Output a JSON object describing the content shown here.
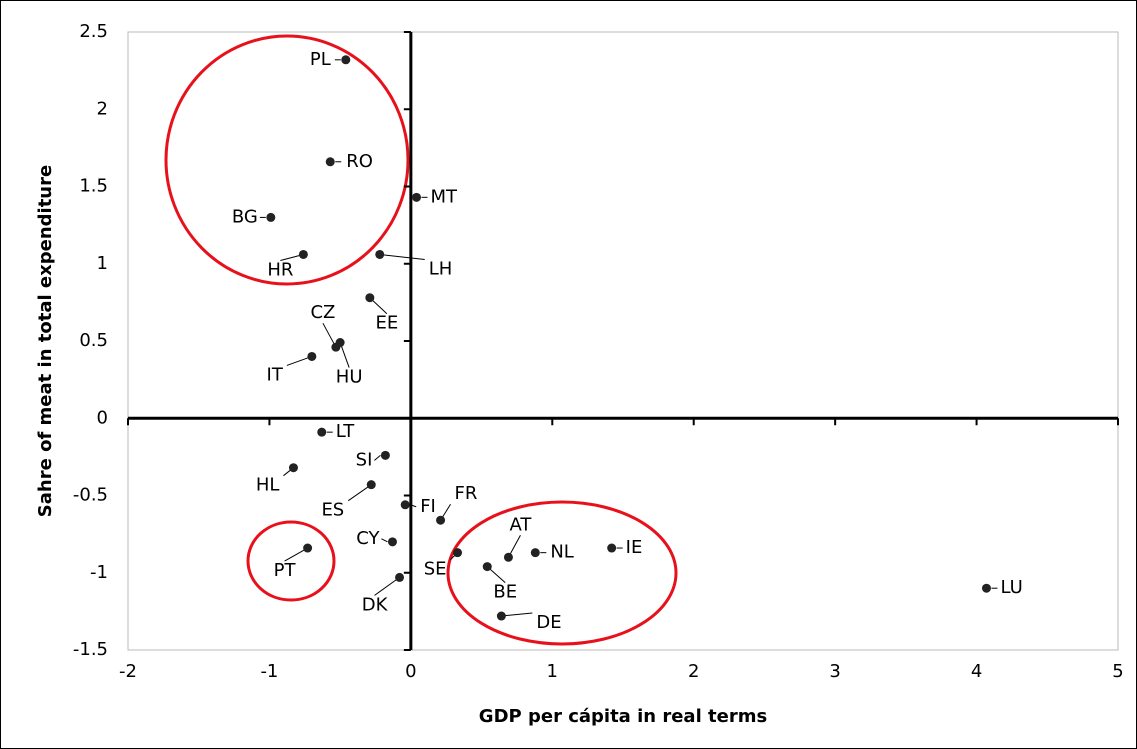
{
  "chart_data": {
    "type": "scatter",
    "x_label": "GDP per cápita in real terms",
    "y_label": "Sahre of meat in total expenditure",
    "color": "#222222",
    "labels": [
      "PL",
      "RO",
      "MT",
      "BG",
      "HR",
      "LH",
      "EE",
      "CZ",
      "HU",
      "IT",
      "LT",
      "SI",
      "HL",
      "ES",
      "FI",
      "FR",
      "CY",
      "PT",
      "SE",
      "AT",
      "NL",
      "IE",
      "BE",
      "DK",
      "DE",
      "LU"
    ],
    "x": [
      -0.46,
      -0.57,
      0.04,
      -0.99,
      -0.76,
      -0.22,
      -0.29,
      -0.53,
      -0.5,
      -0.7,
      -0.63,
      -0.18,
      -0.83,
      -0.28,
      -0.04,
      0.21,
      -0.13,
      -0.73,
      0.33,
      0.69,
      0.88,
      1.42,
      0.54,
      -0.08,
      0.64,
      4.07
    ],
    "values": [
      2.32,
      1.66,
      1.43,
      1.3,
      1.06,
      1.06,
      0.78,
      0.46,
      0.49,
      0.4,
      -0.09,
      -0.24,
      -0.32,
      -0.43,
      -0.56,
      -0.66,
      -0.8,
      -0.84,
      -0.87,
      -0.9,
      -0.87,
      -0.84,
      -0.96,
      -1.03,
      -1.28,
      -1.1
    ],
    "xlim": [
      -2,
      5
    ],
    "ylim": [
      -1.5,
      2.5
    ],
    "xticks": [
      -2,
      -1,
      0,
      1,
      2,
      3,
      4,
      5
    ],
    "yticks": [
      2.5,
      2,
      1.5,
      1,
      0.5,
      0,
      -0.5,
      -1,
      -1.5
    ]
  }
}
